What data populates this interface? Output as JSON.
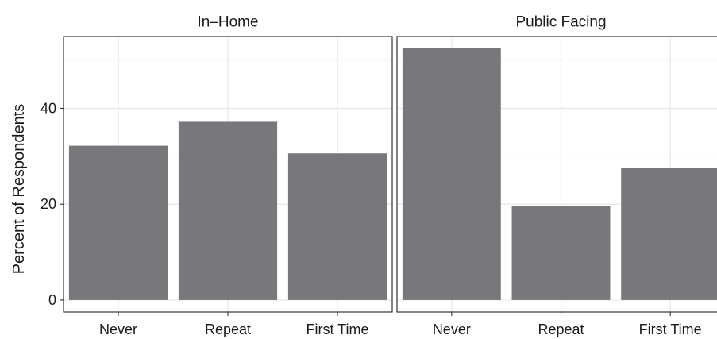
{
  "chart_data": {
    "type": "bar",
    "ylabel": "Percent of Respondents",
    "xlabel": "",
    "ylim": [
      -2.5,
      55
    ],
    "y_ticks": [
      0,
      20,
      40
    ],
    "grid": true,
    "bar_color": "#77787b",
    "categories": [
      "Never",
      "Repeat",
      "First Time"
    ],
    "facets": [
      {
        "label": "In–Home",
        "values": [
          32.2,
          37.2,
          30.6
        ]
      },
      {
        "label": "Public Facing",
        "values": [
          52.6,
          19.6,
          27.6
        ]
      }
    ]
  }
}
